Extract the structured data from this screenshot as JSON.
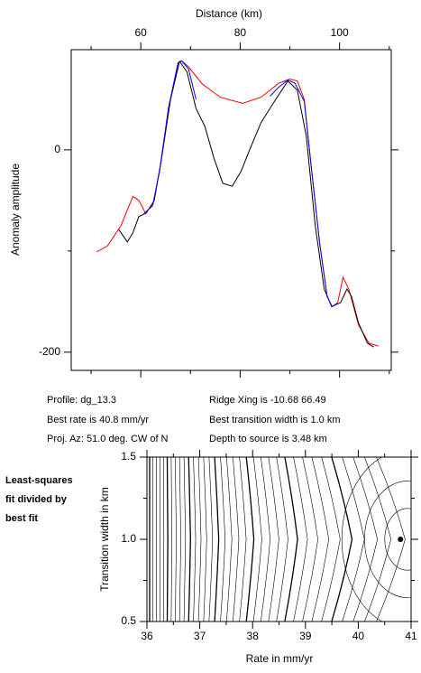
{
  "chart_data": [
    {
      "type": "line",
      "x_label": "Distance (km)",
      "y_label": "Anomaly amplitude",
      "xlim": [
        46,
        110.4
      ],
      "ylim": [
        -218,
        99
      ],
      "xticks": [
        60,
        80,
        100
      ],
      "xticks_minor": [
        50,
        70,
        90,
        110
      ],
      "yticks": [
        0,
        -200
      ],
      "yticks_minor": [
        -100
      ],
      "series": [
        {
          "color": "#ff0000",
          "x": [
            51.1,
            53.3,
            56,
            58.4,
            59.6,
            60.9,
            62.4,
            63.8,
            65.6,
            67.5,
            68.2,
            69.6,
            72.4,
            76,
            80.5,
            84.2,
            87.8,
            90,
            91.5,
            92.9,
            94.2,
            96,
            97.5,
            98.5,
            99.6,
            100.7,
            101.9,
            103.8,
            105.9,
            107.8
          ],
          "values": [
            -101,
            -95,
            -75,
            -46,
            -50,
            -62,
            -55,
            -21,
            41,
            86,
            88,
            82,
            65,
            52,
            46,
            52,
            66,
            70,
            68,
            50,
            -12.5,
            -93,
            -145,
            -155,
            -151,
            -126,
            -138,
            -173,
            -191,
            -194
          ]
        },
        {
          "color": "#000000",
          "x": [
            55.6,
            57.3,
            58.4,
            59.6,
            61.1,
            62.7,
            64.2,
            66,
            67.8,
            69.3,
            71.1,
            72.9,
            74.7,
            76.5,
            78.4,
            80.2,
            82,
            84.2,
            86.9,
            89.6,
            91.5,
            93.3,
            95.1,
            96.9,
            98.4,
            100.2,
            101.5,
            102.4,
            103.8,
            105.6,
            106.9
          ],
          "values": [
            -79,
            -91,
            -82,
            -66,
            -62.5,
            -50,
            -8,
            50,
            87.5,
            77,
            41,
            23,
            -8,
            -33,
            -36,
            -21,
            1,
            27,
            48,
            68,
            59,
            14,
            -75,
            -137.5,
            -155,
            -151,
            -137.5,
            -145,
            -171,
            -191,
            -195
          ]
        },
        {
          "color": "#0000ff",
          "x": [
            60.5,
            62.4,
            63.8,
            65.6,
            67.5,
            68.2,
            69.6,
            71.1,
            null,
            86,
            87.8,
            89.6,
            91,
            92.9,
            94.2,
            96,
            97.5,
            98.5,
            99.6
          ],
          "values": [
            -64,
            -55,
            -20,
            42,
            86,
            88,
            80,
            50,
            null,
            53,
            62,
            69,
            66,
            48,
            -12,
            -92,
            -145,
            -155,
            -152
          ]
        }
      ]
    },
    {
      "type": "contour",
      "x_label": "Rate in mm/yr",
      "y_label": "Transition width in km",
      "xlim": [
        36,
        41
      ],
      "ylim": [
        0.5,
        1.5
      ],
      "xticks": [
        36,
        37,
        38,
        39,
        40,
        41
      ],
      "xticks_minor": [
        36.5,
        37.5,
        38.5,
        39.5,
        40.5
      ],
      "yticks": [
        0.5,
        {
          "value": 1.0,
          "label": "1.0"
        },
        1.5
      ],
      "yticks_minor": [
        0.75,
        1.25
      ],
      "x": [
        40.8
      ],
      "values": [
        1.0
      ]
    }
  ],
  "info": [
    "Profile: dg_13.3",
    "Ridge Xing is -10.68 66.49",
    "Best rate is 40.8 mm/yr",
    "Best transition width is 1.0 km",
    "Proj. Az: 51.0 deg. CW of N",
    "Depth to source is  3.48 km"
  ],
  "side_label": [
    "Least-squares",
    "fit divided by",
    "best fit"
  ]
}
